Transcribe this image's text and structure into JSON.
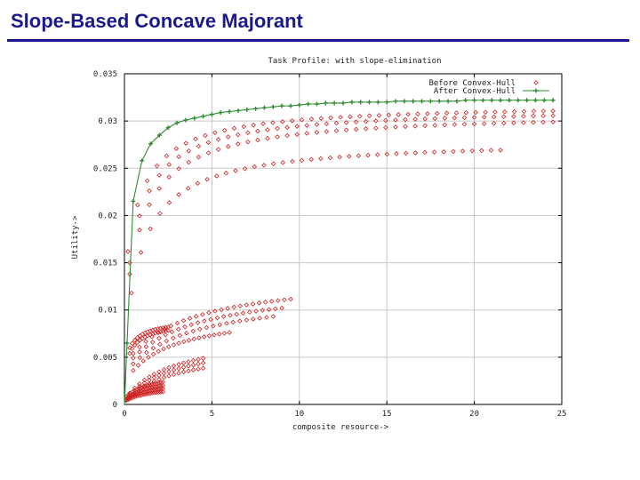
{
  "slide": {
    "title": "Slope-Based Concave Majorant"
  },
  "colors": {
    "title": "#1a1a8c",
    "before": "#cc2222",
    "after": "#2e8b2e",
    "grid": "#c8c8c8",
    "frame": "#000000"
  },
  "chart_data": {
    "type": "scatter",
    "title": "Task Profile: with slope-elimination",
    "xlabel": "composite resource->",
    "ylabel": "Utility->",
    "xlim": [
      0,
      25
    ],
    "ylim": [
      0,
      0.035
    ],
    "xticks": [
      0,
      5,
      10,
      15,
      20,
      25
    ],
    "xtick_labels": [
      "0",
      "5",
      "10",
      "15",
      "20",
      "25"
    ],
    "yticks": [
      0,
      0.005,
      0.01,
      0.015,
      0.02,
      0.025,
      0.03,
      0.035
    ],
    "ytick_labels": [
      "0",
      "0.005",
      "0.01",
      "0.015",
      "0.02",
      "0.025",
      "0.03",
      "0.035"
    ],
    "grid": true,
    "legend": "top-right",
    "series": [
      {
        "name": "Before Convex-Hull",
        "marker": "diamond",
        "groups": [
          {
            "x_start": 0.2,
            "x_end": 24.5,
            "n": 45,
            "u_max": 0.0318,
            "k": 1.2,
            "u_start": 0.0162
          },
          {
            "x_start": 0.3,
            "x_end": 24.5,
            "n": 44,
            "u_max": 0.0314,
            "k": 1.3,
            "u_start": 0.015
          },
          {
            "x_start": 0.3,
            "x_end": 24.5,
            "n": 44,
            "u_max": 0.0309,
            "k": 1.5,
            "u_start": 0.0138
          },
          {
            "x_start": 0.4,
            "x_end": 21.5,
            "n": 40,
            "u_max": 0.028,
            "k": 1.5,
            "u_start": 0.0118
          },
          {
            "x_start": 0.5,
            "x_end": 9.5,
            "n": 26,
            "u_max": 0.0137,
            "k": 4.0,
            "u_start": 0.0054
          },
          {
            "x_start": 0.5,
            "x_end": 9.0,
            "n": 24,
            "u_max": 0.0127,
            "k": 4.0,
            "u_start": 0.0049
          },
          {
            "x_start": 0.5,
            "x_end": 8.5,
            "n": 22,
            "u_max": 0.0118,
            "k": 4.0,
            "u_start": 0.0043
          },
          {
            "x_start": 0.5,
            "x_end": 6.0,
            "n": 20,
            "u_max": 0.0098,
            "k": 3.0,
            "u_start": 0.0036
          },
          {
            "x_start": 0.3,
            "x_end": 2.5,
            "n": 16,
            "u_max": 0.009,
            "k": 0.8,
            "u_start": 0.006
          },
          {
            "x_start": 0.3,
            "x_end": 2.5,
            "n": 16,
            "u_max": 0.0087,
            "k": 0.8,
            "u_start": 0.0054
          },
          {
            "x_start": 0.3,
            "x_end": 4.5,
            "n": 16,
            "u_max": 0.0075,
            "k": 3.0,
            "u_start": 0.0012
          },
          {
            "x_start": 0.3,
            "x_end": 4.5,
            "n": 16,
            "u_max": 0.0068,
            "k": 3.0,
            "u_start": 0.001
          },
          {
            "x_start": 0.3,
            "x_end": 4.5,
            "n": 16,
            "u_max": 0.006,
            "k": 3.0,
            "u_start": 0.0008
          },
          {
            "x_start": 0.1,
            "x_end": 2.2,
            "n": 18,
            "u_max": 0.0035,
            "k": 1.5,
            "u_start": 0.0008
          },
          {
            "x_start": 0.1,
            "x_end": 2.2,
            "n": 18,
            "u_max": 0.003,
            "k": 1.5,
            "u_start": 0.0006
          },
          {
            "x_start": 0.1,
            "x_end": 2.2,
            "n": 18,
            "u_max": 0.0025,
            "k": 1.5,
            "u_start": 0.0005
          },
          {
            "x_start": 0.1,
            "x_end": 2.2,
            "n": 18,
            "u_max": 0.002,
            "k": 1.5,
            "u_start": 0.0004
          }
        ]
      },
      {
        "name": "After Convex-Hull",
        "marker": "cross",
        "x": [
          0.15,
          0.5,
          1.0,
          1.5,
          2.0,
          2.5,
          3.0,
          3.5,
          4.0,
          4.5,
          5.0,
          5.5,
          6.0,
          6.5,
          7.0,
          7.5,
          8.0,
          8.5,
          9.0,
          9.5,
          10.0,
          10.5,
          11.0,
          11.5,
          12.0,
          12.5,
          13.0,
          13.5,
          14.0,
          14.5,
          15.0,
          15.5,
          16.0,
          16.5,
          17.0,
          17.5,
          18.0,
          18.5,
          19.0,
          19.5,
          20.0,
          20.5,
          21.0,
          21.5,
          22.0,
          22.5,
          23.0,
          23.5,
          24.0,
          24.5
        ],
        "y": [
          0.0065,
          0.0215,
          0.0258,
          0.0276,
          0.0285,
          0.0293,
          0.0298,
          0.0301,
          0.0303,
          0.0305,
          0.0307,
          0.0309,
          0.031,
          0.0311,
          0.0312,
          0.0313,
          0.0314,
          0.0315,
          0.0316,
          0.0316,
          0.0317,
          0.0318,
          0.0318,
          0.0319,
          0.0319,
          0.0319,
          0.032,
          0.032,
          0.032,
          0.032,
          0.032,
          0.0321,
          0.0321,
          0.0321,
          0.0321,
          0.0321,
          0.0321,
          0.0321,
          0.0321,
          0.0322,
          0.0322,
          0.0322,
          0.0322,
          0.0322,
          0.0322,
          0.0322,
          0.0322,
          0.0322,
          0.0322,
          0.0322
        ]
      }
    ]
  }
}
